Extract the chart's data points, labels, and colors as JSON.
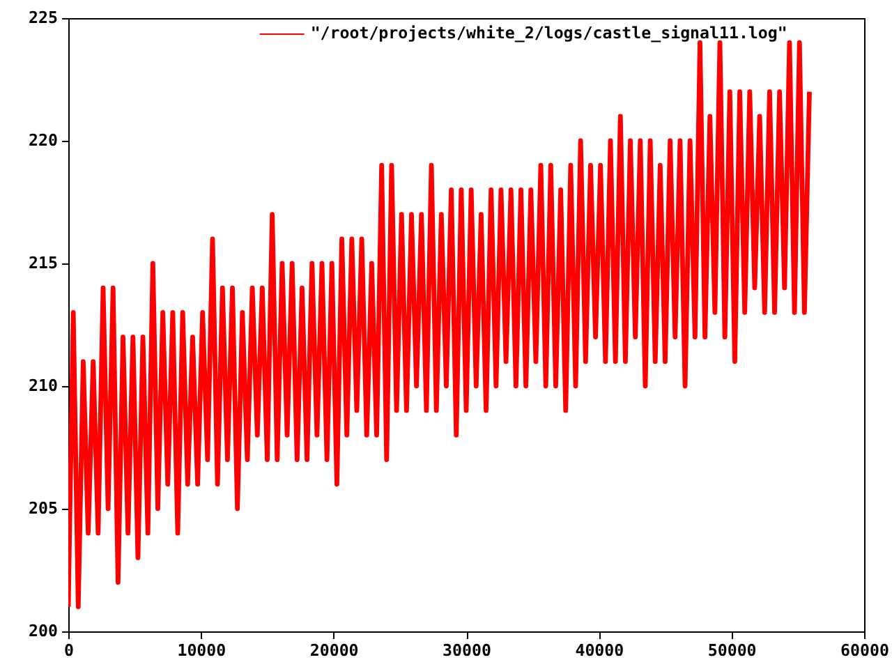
{
  "chart_data": {
    "type": "line",
    "x": [
      0,
      375,
      750,
      1125,
      1500,
      1875,
      2250,
      2625,
      3000,
      3375,
      3750,
      4125,
      4500,
      4875,
      5250,
      5625,
      6000,
      6375,
      6750,
      7125,
      7500,
      7875,
      8250,
      8625,
      9000,
      9375,
      9750,
      10125,
      10500,
      10875,
      11250,
      11625,
      12000,
      12375,
      12750,
      13125,
      13500,
      13875,
      14250,
      14625,
      15000,
      15375,
      15750,
      16125,
      16500,
      16875,
      17250,
      17625,
      18000,
      18375,
      18750,
      19125,
      19500,
      19875,
      20250,
      20625,
      21000,
      21375,
      21750,
      22125,
      22500,
      22875,
      23250,
      23625,
      24000,
      24375,
      24750,
      25125,
      25500,
      25875,
      26250,
      26625,
      27000,
      27375,
      27750,
      28125,
      28500,
      28875,
      29250,
      29625,
      30000,
      30375,
      30750,
      31125,
      31500,
      31875,
      32250,
      32625,
      33000,
      33375,
      33750,
      34125,
      34500,
      34875,
      35250,
      35625,
      36000,
      36375,
      36750,
      37125,
      37500,
      37875,
      38250,
      38625,
      39000,
      39375,
      39750,
      40125,
      40500,
      40875,
      41250,
      41625,
      42000,
      42375,
      42750,
      43125,
      43500,
      43875,
      44250,
      44625,
      45000,
      45375,
      45750,
      46125,
      46500,
      46875,
      47250,
      47625,
      48000,
      48375,
      48750,
      49125,
      49500,
      49875,
      50250,
      50625,
      51000,
      51375,
      51750,
      52125,
      52500,
      52875,
      53250,
      53625,
      54000,
      54375,
      54750,
      55125,
      55500,
      55875
    ],
    "series": [
      {
        "name": "\"/root/projects/white_2/logs/castle_signal11.log\"",
        "color": "#ff0000",
        "values": [
          201,
          213,
          201,
          211,
          204,
          211,
          204,
          214,
          205,
          214,
          202,
          212,
          204,
          212,
          203,
          212,
          204,
          215,
          205,
          213,
          206,
          213,
          204,
          213,
          206,
          212,
          206,
          213,
          207,
          216,
          206,
          214,
          207,
          214,
          205,
          213,
          207,
          214,
          208,
          214,
          207,
          217,
          207,
          215,
          208,
          215,
          207,
          214,
          207,
          215,
          208,
          215,
          207,
          215,
          206,
          216,
          208,
          216,
          209,
          216,
          208,
          215,
          208,
          219,
          207,
          219,
          209,
          217,
          209,
          217,
          210,
          217,
          209,
          219,
          209,
          217,
          210,
          218,
          208,
          218,
          209,
          218,
          210,
          217,
          209,
          218,
          210,
          218,
          211,
          218,
          210,
          218,
          210,
          218,
          211,
          219,
          210,
          219,
          210,
          218,
          209,
          219,
          210,
          220,
          211,
          219,
          212,
          219,
          211,
          220,
          211,
          221,
          211,
          220,
          212,
          220,
          210,
          220,
          211,
          219,
          211,
          220,
          212,
          220,
          210,
          220,
          212,
          224,
          212,
          221,
          213,
          224,
          212,
          222,
          211,
          222,
          213,
          222,
          214,
          221,
          213,
          222,
          213,
          222,
          214,
          224,
          213,
          224,
          213,
          222
        ]
      }
    ],
    "xlim": [
      0,
      60000
    ],
    "xticks": [
      0,
      10000,
      20000,
      30000,
      40000,
      50000,
      60000
    ],
    "ylim": [
      200,
      225
    ],
    "yticks": [
      200,
      205,
      210,
      215,
      220,
      225
    ],
    "grid": false,
    "legend": "top right",
    "marker": "none",
    "line_style": "solid"
  }
}
